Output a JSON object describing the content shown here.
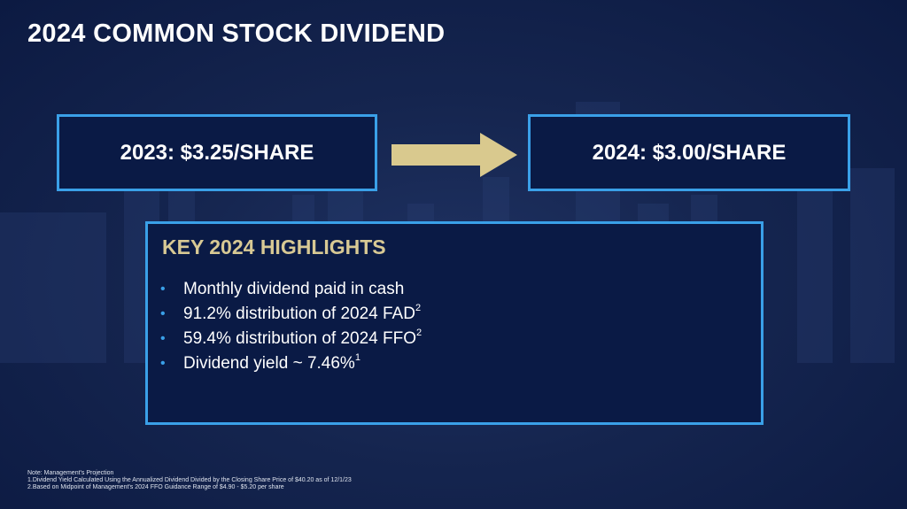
{
  "title": "2024 COMMON STOCK DIVIDEND",
  "box_2023": "2023: $3.25/SHARE",
  "box_2024": "2024: $3.00/SHARE",
  "highlights": {
    "heading": "KEY 2024 HIGHLIGHTS",
    "items": [
      {
        "text": "Monthly dividend paid in cash",
        "sup": ""
      },
      {
        "text": "91.2% distribution of 2024 FAD",
        "sup": "2"
      },
      {
        "text": "59.4% distribution of 2024 FFO",
        "sup": "2"
      },
      {
        "text": "Dividend yield ~ 7.46%",
        "sup": "1"
      }
    ]
  },
  "notes": [
    "Note: Management's Projection",
    "1.Dividend Yield Calculated Using the Annualized Dividend Divided by the Closing Share Price of $40.20 as of 12/1/23",
    "2.Based on Midpoint of Management's 2024 FFO Guidance Range of $4.90 - $5.20 per share"
  ],
  "colors": {
    "accent": "#3aa0e8",
    "gold": "#d8c994",
    "arrow": "#d9c98e"
  }
}
